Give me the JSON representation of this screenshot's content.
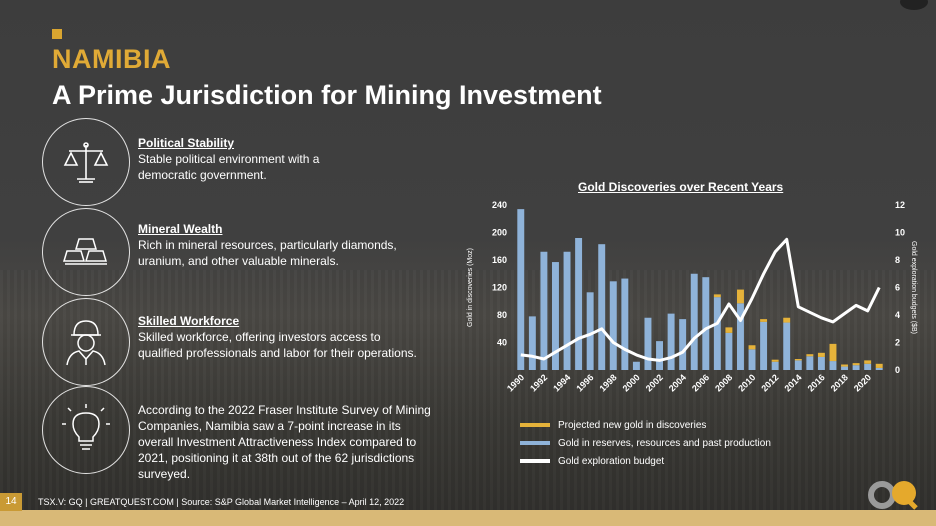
{
  "page_number": "14",
  "header": {
    "country": "NAMIBIA",
    "headline": "A Prime Jurisdiction for Mining Investment"
  },
  "features": [
    {
      "title": "Political Stability",
      "desc_lines": [
        "Stable political environment with a",
        "democratic government."
      ]
    },
    {
      "title": "Mineral Wealth",
      "desc_lines": [
        "Rich in mineral resources, particularly diamonds,",
        "uranium, and other valuable minerals."
      ]
    },
    {
      "title": "Skilled Workforce",
      "desc_lines": [
        "Skilled workforce, offering investors access to",
        "qualified professionals and labor for their operations."
      ]
    }
  ],
  "survey_text": "According to the 2022 Fraser Institute Survey of Mining Companies, Namibia saw a 7-point increase in its overall Investment Attractiveness Index compared to 2021, positioning it at 38th out of the 62 jurisdictions surveyed.",
  "footnote": "TSX.V: GQ | GREATQUEST.COM | Source: S&P Global Market Intelligence – April 12, 2022",
  "colors": {
    "accent": "#d9a530",
    "bar_reserves": "#8fb3d9",
    "bar_projected": "#e5b23a",
    "line_budget": "#ffffff"
  },
  "chart_data": {
    "type": "bar",
    "title": "Gold Discoveries over Recent Years",
    "ylabel": "Gold in discoveries (Moz)",
    "y2label": "Gold exploration budgets ($B)",
    "ylim": [
      0,
      240
    ],
    "y2lim": [
      0,
      12
    ],
    "yticks": [
      "40",
      "80",
      "120",
      "160",
      "200",
      "240"
    ],
    "y2ticks": [
      "0",
      "2",
      "4",
      "6",
      "8",
      "10",
      "12"
    ],
    "xtick_labels": [
      "1990",
      "1992",
      "1994",
      "1996",
      "1998",
      "2000",
      "2002",
      "2004",
      "2006",
      "2008",
      "2010",
      "2012",
      "2014",
      "2016",
      "2018",
      "2020"
    ],
    "years": [
      1990,
      1991,
      1992,
      1993,
      1994,
      1995,
      1996,
      1997,
      1998,
      1999,
      2000,
      2001,
      2002,
      2003,
      2004,
      2005,
      2006,
      2007,
      2008,
      2009,
      2010,
      2011,
      2012,
      2013,
      2014,
      2015,
      2016,
      2017,
      2018,
      2019,
      2020,
      2021
    ],
    "series": [
      {
        "name": "Gold in reserves, resources and past production",
        "kind": "bar",
        "values": [
          234,
          78,
          172,
          157,
          172,
          192,
          113,
          183,
          129,
          133,
          12,
          76,
          42,
          82,
          74,
          140,
          135,
          106,
          54,
          97,
          30,
          70,
          12,
          69,
          14,
          20,
          19,
          13,
          5,
          7,
          9,
          3
        ]
      },
      {
        "name": "Projected new gold in discoveries",
        "kind": "bar-stack",
        "values": [
          0,
          0,
          0,
          0,
          0,
          0,
          0,
          0,
          0,
          0,
          0,
          0,
          0,
          0,
          0,
          0,
          0,
          4,
          8,
          20,
          6,
          4,
          3,
          7,
          2,
          3,
          6,
          25,
          3,
          3,
          5,
          6
        ]
      },
      {
        "name": "Gold exploration budget",
        "kind": "line",
        "values": [
          1.1,
          1.0,
          0.8,
          1.3,
          1.8,
          2.3,
          2.6,
          3.0,
          2.0,
          1.5,
          1.1,
          0.8,
          0.7,
          0.9,
          1.3,
          2.3,
          3.0,
          3.4,
          4.8,
          3.6,
          5.2,
          7.0,
          8.6,
          9.5,
          4.6,
          4.2,
          3.8,
          3.5,
          4.1,
          4.7,
          4.3,
          6.0
        ]
      }
    ],
    "legend": [
      {
        "label": "Projected new gold in discoveries",
        "color": "#e5b23a"
      },
      {
        "label": "Gold in reserves, resources and past production",
        "color": "#8fb3d9"
      },
      {
        "label": "Gold exploration budget",
        "color": "#ffffff"
      }
    ],
    "legend_position": "bottom"
  }
}
